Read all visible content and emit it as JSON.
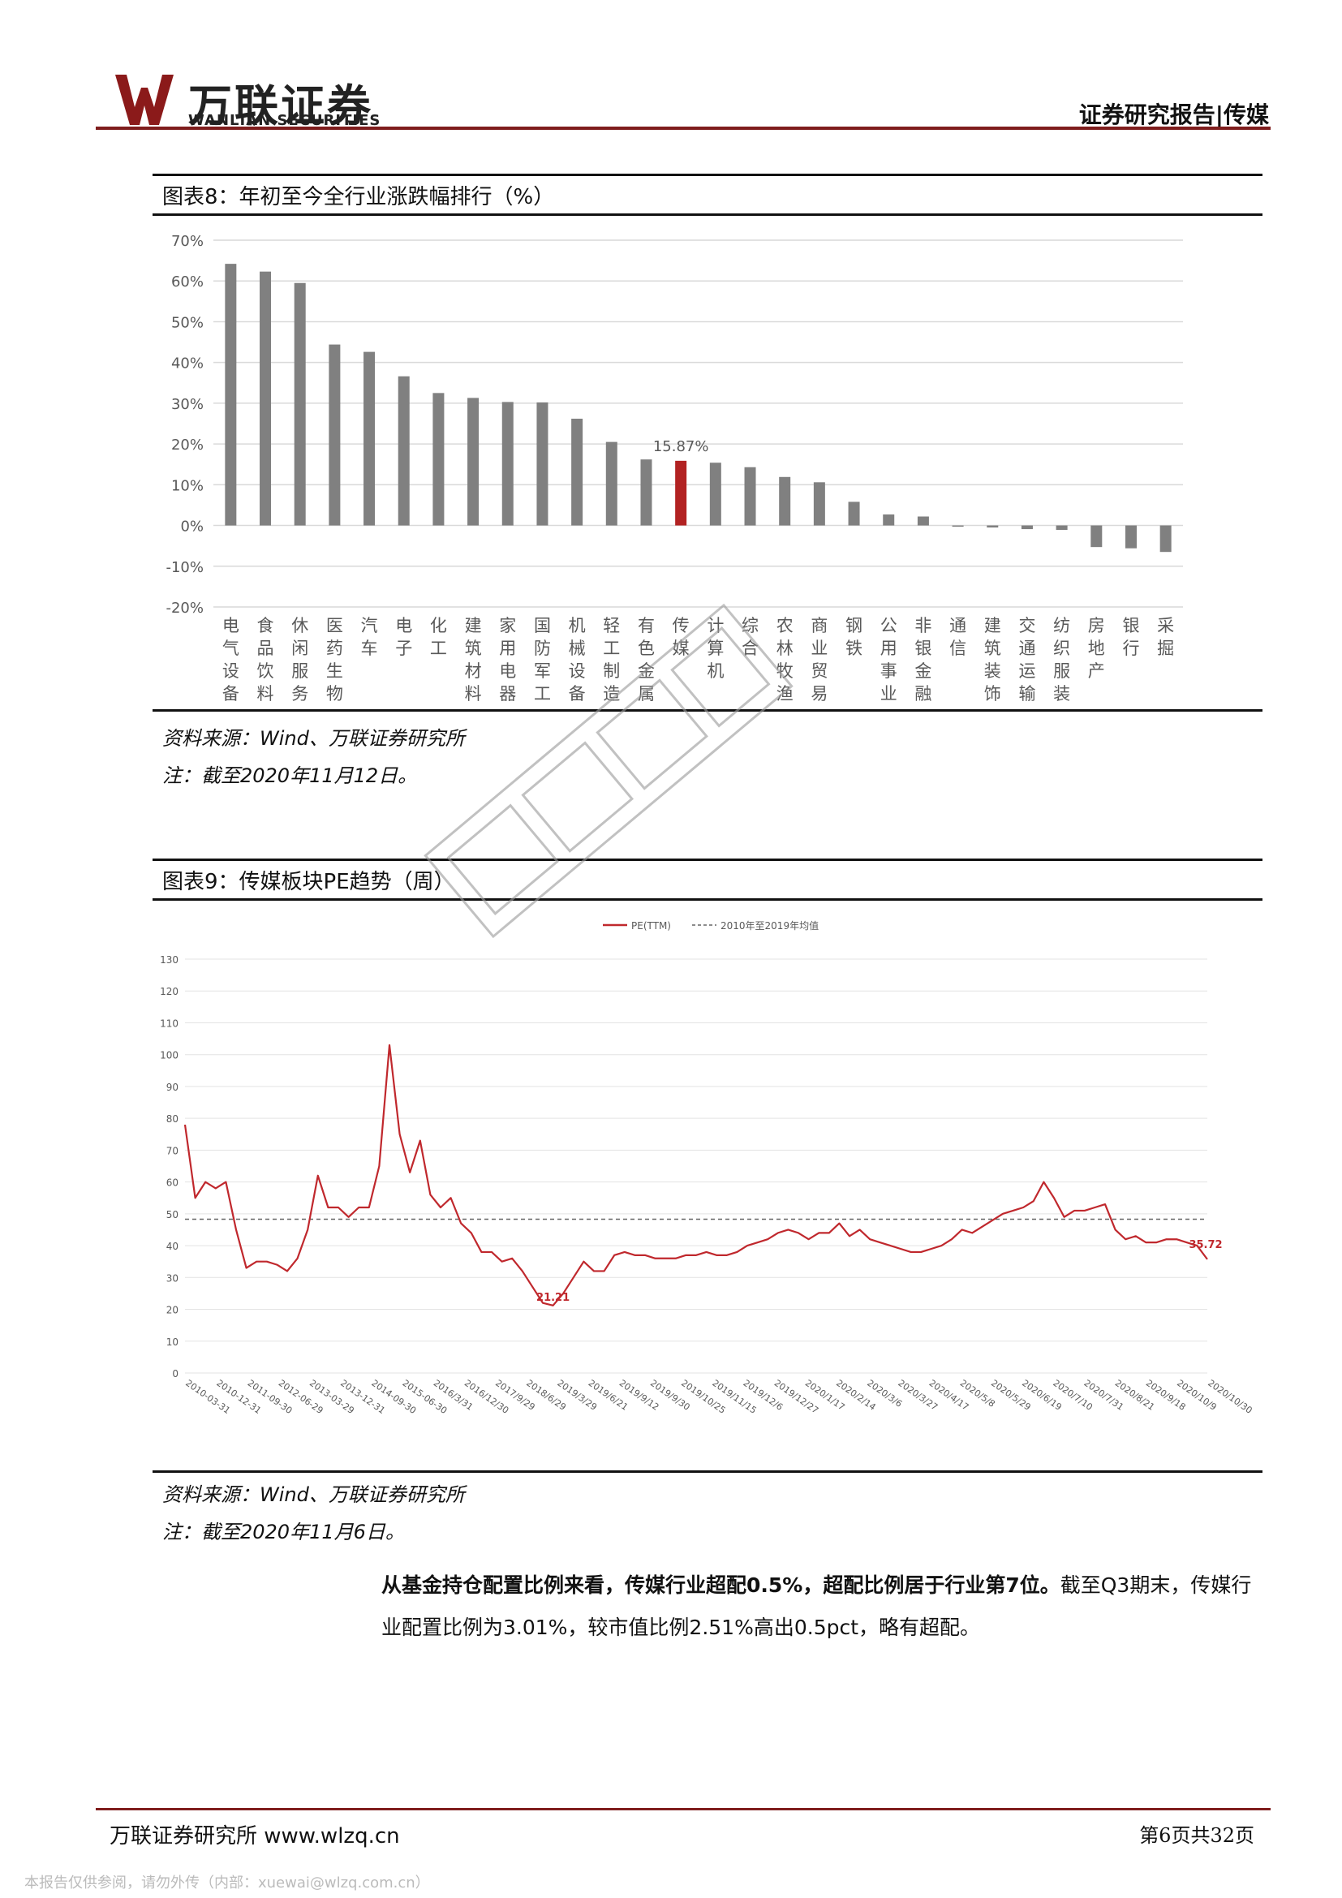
{
  "header": {
    "logo_cn": "万联证券",
    "logo_en": "WANLIAN SECURITIES",
    "title": "证券研究报告|传媒"
  },
  "figure8": {
    "title": "图表8：年初至今全行业涨跌幅排行（%）",
    "source": "资料来源：Wind、万联证券研究所",
    "note": "注：截至2020年11月12日。"
  },
  "figure9": {
    "title": "图表9：传媒板块PE趋势（周）",
    "source": "资料来源：Wind、万联证券研究所",
    "note": "注：截至2020年11月6日。"
  },
  "paragraph": {
    "bold": "从基金持仓配置比例来看，传媒行业超配0.5%，超配比例居于行业第7位。",
    "normal": "截至Q3期末，传媒行业配置比例为3.01%，较市值比例2.51%高出0.5pct，略有超配。"
  },
  "footer": {
    "left": "万联证券研究所 www.wlzq.cn",
    "right": "第6页共32页",
    "download_note": "本报告仅供参阅，请勿外传（内部：xuewai@wlzq.com.cn）"
  },
  "colors": {
    "brand": "#8b1a1a",
    "bar": "#808080",
    "highlight": "#b22222",
    "line": "#c0282d"
  },
  "chart_data": [
    {
      "type": "bar",
      "title": "",
      "ylim": [
        -20,
        70
      ],
      "yticks": [
        "70%",
        "60%",
        "50%",
        "40%",
        "30%",
        "20%",
        "10%",
        "0%",
        "-10%",
        "-20%"
      ],
      "categories": [
        "电气设备",
        "食品饮料",
        "休闲服务",
        "医药生物",
        "汽车",
        "电子",
        "化工",
        "建筑材料",
        "家用电器",
        "国防军工",
        "机械设备",
        "轻工制造",
        "有色金属",
        "传媒",
        "计算机",
        "综合",
        "农林牧渔",
        "商业贸易",
        "钢铁",
        "公用事业",
        "非银金融",
        "通信",
        "建筑装饰",
        "交通运输",
        "纺织服装",
        "房地产",
        "银行",
        "采掘"
      ],
      "values": [
        64.2,
        62.3,
        59.5,
        44.4,
        42.6,
        36.6,
        32.5,
        31.3,
        30.3,
        30.2,
        26.2,
        20.5,
        16.2,
        15.87,
        15.4,
        14.3,
        11.9,
        10.6,
        5.8,
        2.7,
        2.2,
        -0.3,
        -0.5,
        -0.9,
        -1.1,
        -5.3,
        -5.6,
        -6.5
      ],
      "highlight_index": 13,
      "highlight_label": "15.87%",
      "grid": true
    },
    {
      "type": "line",
      "title": "",
      "legend": [
        "PE(TTM)",
        "2010年至2019年均值"
      ],
      "legend_position": "top",
      "ylim": [
        0,
        130
      ],
      "yticks": [
        "130",
        "120",
        "110",
        "100",
        "90",
        "80",
        "70",
        "60",
        "50",
        "40",
        "30",
        "20",
        "10",
        "0"
      ],
      "xticks": [
        "2010-03-31",
        "2010-12-31",
        "2011-09-30",
        "2012-06-29",
        "2013-03-29",
        "2013-12-31",
        "2014-09-30",
        "2015-06-30",
        "2016/3/31",
        "2016/12/30",
        "2017/9/29",
        "2018/6/29",
        "2019/3/29",
        "2019/6/21",
        "2019/9/12",
        "2019/9/30",
        "2019/10/25",
        "2019/11/15",
        "2019/12/6",
        "2019/12/27",
        "2020/1/17",
        "2020/2/14",
        "2020/3/6",
        "2020/3/27",
        "2020/4/17",
        "2020/5/8",
        "2020/5/29",
        "2020/6/19",
        "2020/7/10",
        "2020/7/31",
        "2020/8/21",
        "2020/9/18",
        "2020/10/9",
        "2020/10/30"
      ],
      "mean_value": 48.3,
      "series": [
        {
          "name": "PE(TTM)",
          "values": [
            78,
            55,
            60,
            58,
            60,
            45,
            33,
            35,
            35,
            34,
            32,
            36,
            45,
            62,
            52,
            52,
            49,
            52,
            52,
            65,
            103,
            75,
            63,
            73,
            56,
            52,
            55,
            47,
            44,
            38,
            38,
            35,
            36,
            32,
            27,
            22,
            21.21,
            25,
            30,
            35,
            32,
            32,
            37,
            38,
            37,
            37,
            36,
            36,
            36,
            37,
            37,
            38,
            37,
            37,
            38,
            40,
            41,
            42,
            44,
            45,
            44,
            42,
            44,
            44,
            47,
            43,
            45,
            42,
            41,
            40,
            39,
            38,
            38,
            39,
            40,
            42,
            45,
            44,
            46,
            48,
            50,
            51,
            52,
            54,
            60,
            55,
            49,
            51,
            51,
            52,
            53,
            45,
            42,
            43,
            41,
            41,
            42,
            42,
            41,
            40,
            35.72
          ],
          "start_label": "21.21",
          "end_label": "35.72"
        }
      ],
      "grid": true
    }
  ]
}
